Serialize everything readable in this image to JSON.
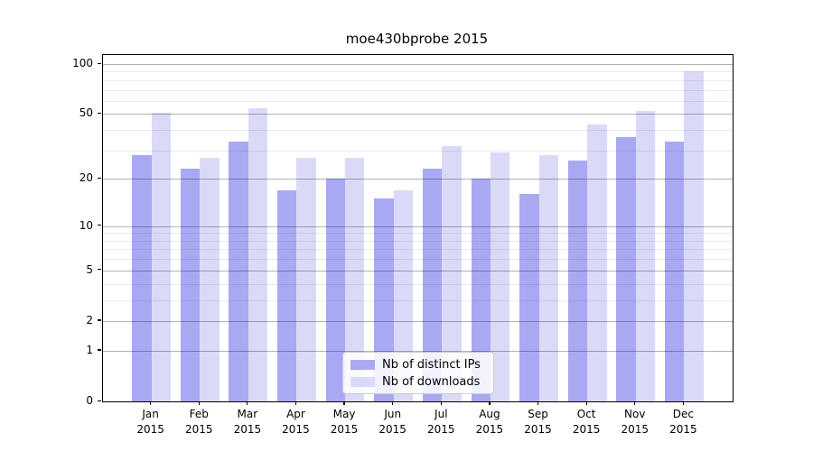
{
  "chart_data": {
    "type": "bar",
    "title": "moe430bprobe 2015",
    "categories": [
      "Jan 2015",
      "Feb 2015",
      "Mar 2015",
      "Apr 2015",
      "May 2015",
      "Jun 2015",
      "Jul 2015",
      "Aug 2015",
      "Sep 2015",
      "Oct 2015",
      "Nov 2015",
      "Dec 2015"
    ],
    "series": [
      {
        "name": "Nb of distinct IPs",
        "color": "#a9a9f3",
        "values": [
          28,
          23,
          34,
          17,
          20,
          15,
          23,
          20,
          16,
          26,
          36,
          34
        ]
      },
      {
        "name": "Nb of downloads",
        "color": "#dadaf8",
        "values": [
          51,
          27,
          54,
          27,
          27,
          17,
          32,
          29,
          28,
          43,
          52,
          90
        ]
      }
    ],
    "yscale": "log1p",
    "yticks": [
      0,
      1,
      2,
      5,
      10,
      20,
      50,
      100
    ],
    "minor_gridlines": [
      3,
      4,
      6,
      7,
      8,
      9,
      30,
      40,
      60,
      70,
      80,
      90
    ],
    "ylim": [
      0,
      113
    ],
    "grid": true,
    "legend_position": "lower center"
  }
}
